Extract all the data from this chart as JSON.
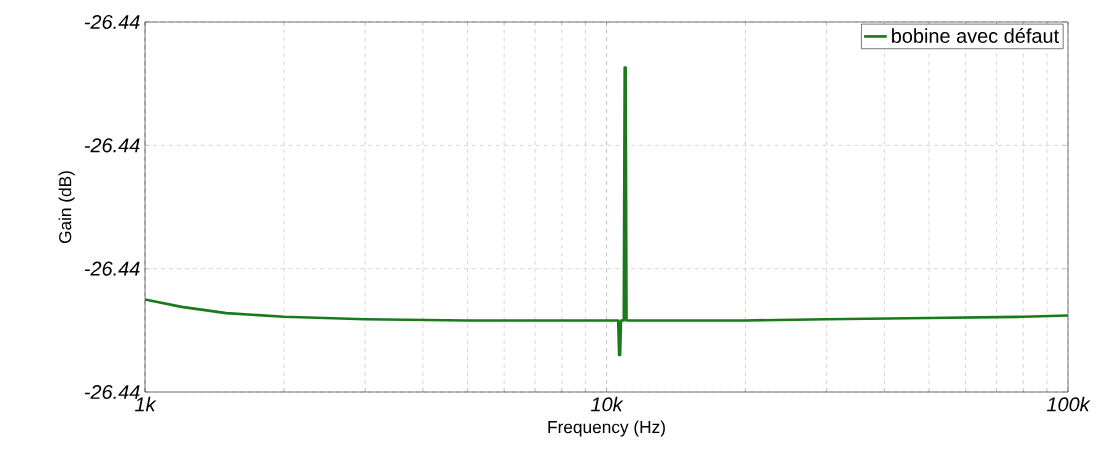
{
  "chart_data": {
    "type": "line",
    "xlabel": "Frequency (Hz)",
    "ylabel": "Gain (dB)",
    "log": "x",
    "grid": true,
    "legend": "top right",
    "line_style": "solid",
    "marker": "none",
    "xlim": [
      1000,
      100000
    ],
    "xticks": [
      {
        "value": 1000,
        "label": "1k"
      },
      {
        "value": 10000,
        "label": "10k"
      },
      {
        "value": 100000,
        "label": "100k"
      }
    ],
    "ylim": [
      -26.442,
      -26.439
    ],
    "yticks": [
      {
        "value": -26.442,
        "label": "-26.44"
      },
      {
        "value": -26.441,
        "label": "-26.44"
      },
      {
        "value": -26.44,
        "label": "-26.44"
      },
      {
        "value": -26.439,
        "label": "-26.44"
      }
    ],
    "series": [
      {
        "name": "bobine avec défaut",
        "color": "#1a7a1a",
        "x": [
          1000,
          1200,
          1500,
          2000,
          3000,
          5000,
          10000,
          10600,
          10650,
          10700,
          10750,
          10900,
          10950,
          11000,
          11050,
          20000,
          30000,
          50000,
          80000,
          100000
        ],
        "values": [
          -26.44125,
          -26.44131,
          -26.44136,
          -26.44139,
          -26.44141,
          -26.44142,
          -26.44142,
          -26.44142,
          -26.4417,
          -26.4417,
          -26.44142,
          -26.44142,
          -26.43937,
          -26.43937,
          -26.44142,
          -26.44142,
          -26.44141,
          -26.4414,
          -26.44139,
          -26.44138
        ]
      }
    ]
  }
}
